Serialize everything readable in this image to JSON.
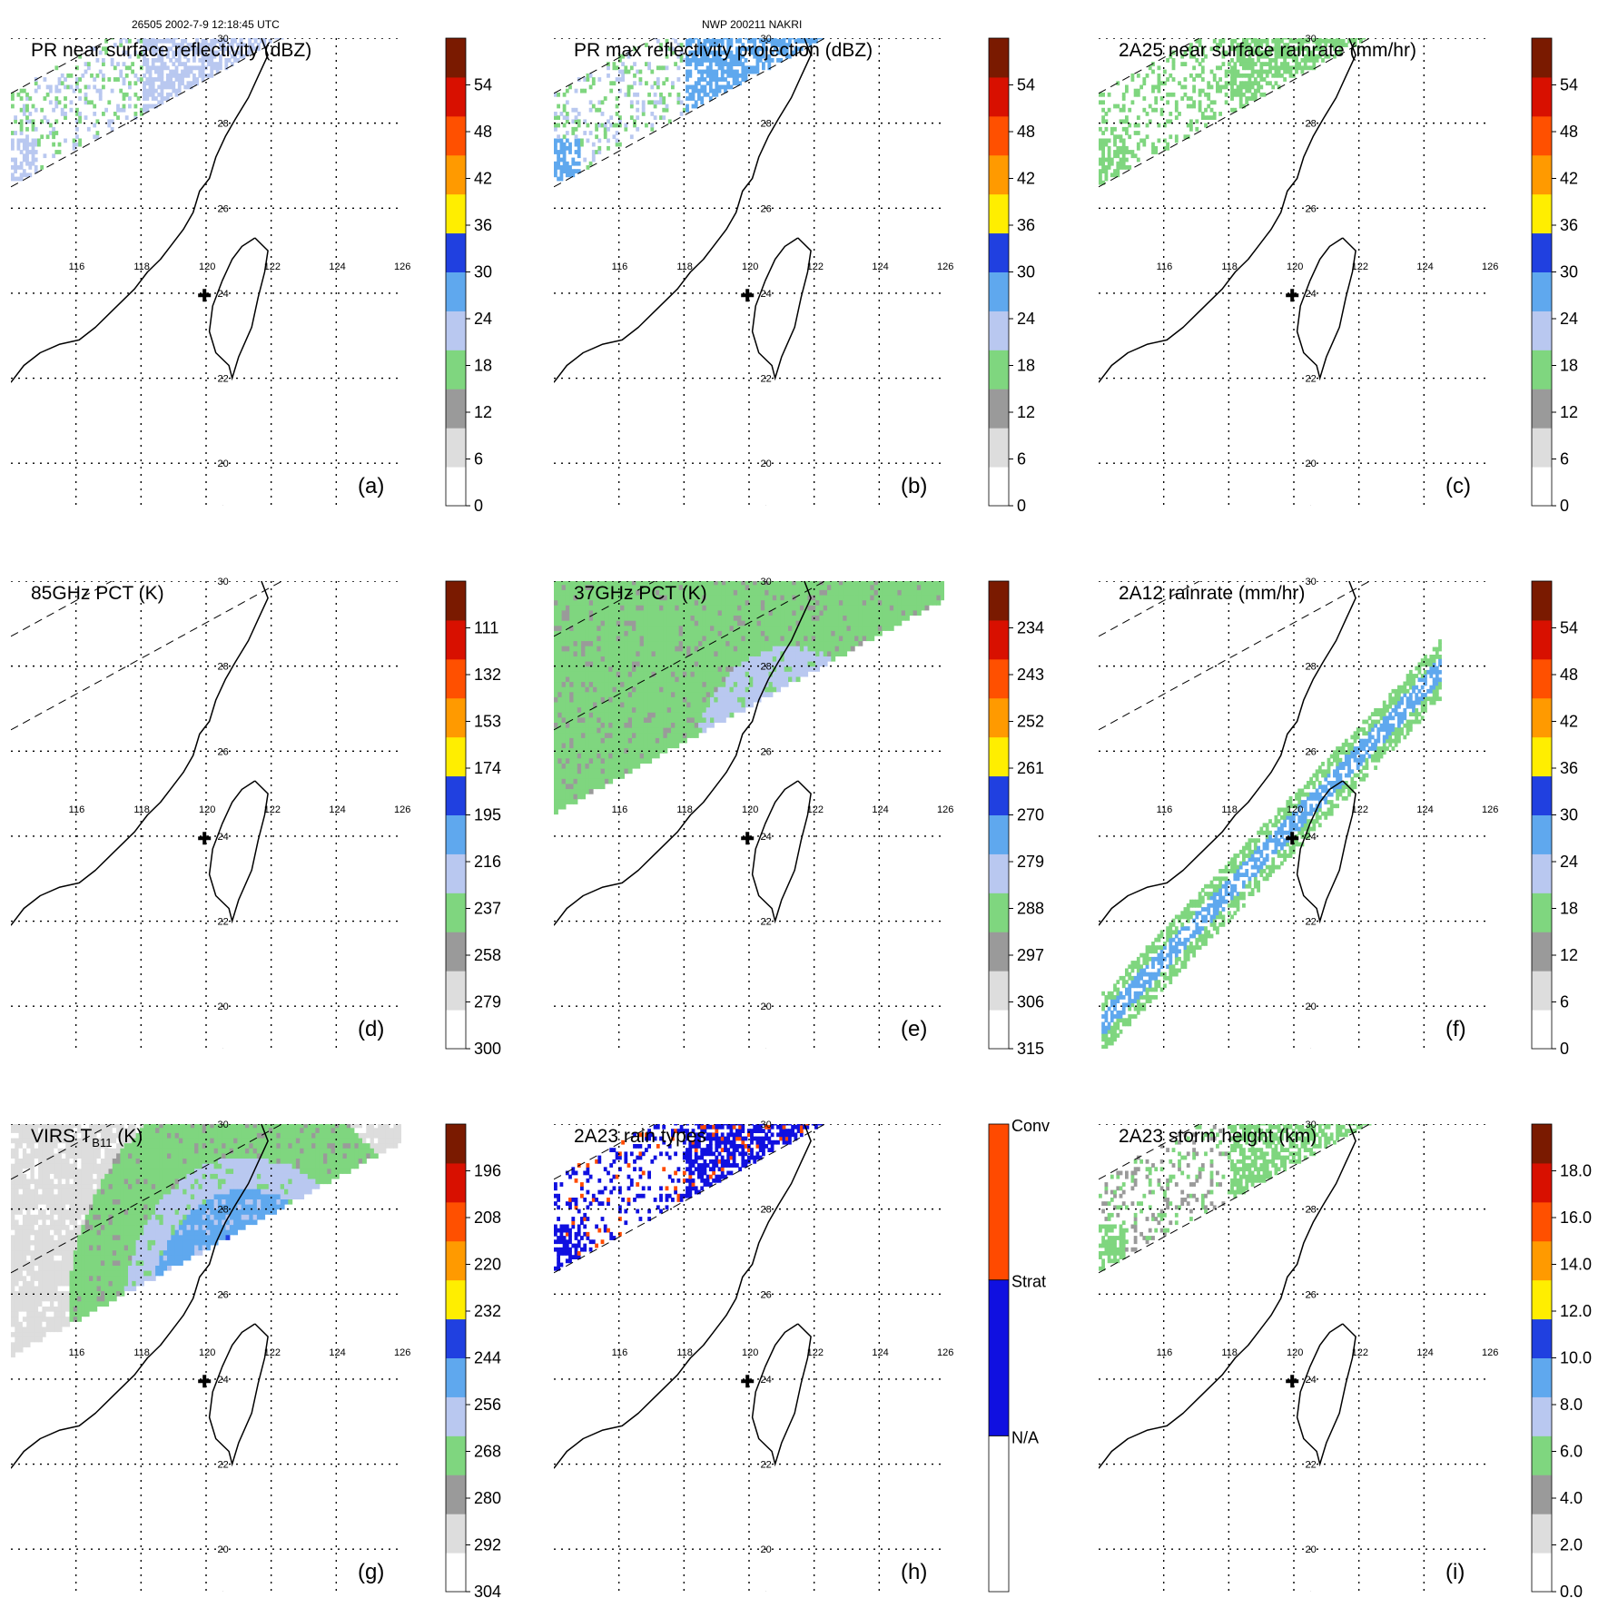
{
  "header": {
    "orbit": "26505 2002-7-9 12:18:45 UTC",
    "storm": "NWP 200211 NAKRI"
  },
  "colors": {
    "rain": [
      "#ffffff",
      "#dddddd",
      "#9a9a9a",
      "#7fd67f",
      "#b9c8f0",
      "#5fa8ee",
      "#2040e0",
      "#ffee00",
      "#ff9a00",
      "#ff5000",
      "#d81000",
      "#7a1a00"
    ],
    "pct": [
      "#ffffff",
      "#dddddd",
      "#9a9a9a",
      "#7fd67f",
      "#b9c8f0",
      "#5fa8ee",
      "#2040e0",
      "#ffee00",
      "#ff9a00",
      "#ff5000",
      "#d81000",
      "#7a1a00"
    ],
    "raintype": [
      "#ffffff",
      "#1010e0",
      "#ff4a00"
    ]
  },
  "chart_data": [
    {
      "id": "a",
      "type": "heatmap",
      "title": "PR near surface reflectivity (dBZ)",
      "panel_label": "(a)",
      "colorbar_ticks": [
        "0",
        "6",
        "12",
        "18",
        "24",
        "30",
        "36",
        "42",
        "48",
        "54"
      ],
      "colorbar_range": [
        0,
        60
      ],
      "x_ticks": [
        "116",
        "118",
        "120",
        "122",
        "124",
        "126"
      ],
      "y_ticks": [
        "20",
        "22",
        "24",
        "26",
        "28",
        "30"
      ],
      "xlim": [
        114,
        126
      ],
      "ylim": [
        19,
        30
      ],
      "field": "pr_swath"
    },
    {
      "id": "b",
      "type": "heatmap",
      "title": "PR max reflectivity projection (dBZ)",
      "panel_label": "(b)",
      "colorbar_ticks": [
        "0",
        "6",
        "12",
        "18",
        "24",
        "30",
        "36",
        "42",
        "48",
        "54"
      ],
      "colorbar_range": [
        0,
        60
      ],
      "x_ticks": [
        "116",
        "118",
        "120",
        "122",
        "124",
        "126"
      ],
      "y_ticks": [
        "20",
        "22",
        "24",
        "26",
        "28",
        "30"
      ],
      "xlim": [
        114,
        126
      ],
      "ylim": [
        19,
        30
      ],
      "field": "pr_swath_max"
    },
    {
      "id": "c",
      "type": "heatmap",
      "title": "2A25 near surface rainrate (mm/hr)",
      "panel_label": "(c)",
      "colorbar_ticks": [
        "0",
        "6",
        "12",
        "18",
        "24",
        "30",
        "36",
        "42",
        "48",
        "54"
      ],
      "colorbar_range": [
        0,
        60
      ],
      "x_ticks": [
        "116",
        "118",
        "120",
        "122",
        "124",
        "126"
      ],
      "y_ticks": [
        "20",
        "22",
        "24",
        "26",
        "28",
        "30"
      ],
      "xlim": [
        114,
        126
      ],
      "ylim": [
        19,
        30
      ],
      "field": "pr_rain"
    },
    {
      "id": "d",
      "type": "heatmap",
      "title": "85GHz PCT (K)",
      "panel_label": "(d)",
      "colorbar_ticks": [
        "300",
        "279",
        "258",
        "237",
        "216",
        "195",
        "174",
        "153",
        "132",
        "111"
      ],
      "colorbar_range": [
        300,
        90
      ],
      "x_ticks": [
        "116",
        "118",
        "120",
        "122",
        "124",
        "126"
      ],
      "y_ticks": [
        "20",
        "22",
        "24",
        "26",
        "28",
        "30"
      ],
      "xlim": [
        114,
        126
      ],
      "ylim": [
        19,
        30
      ],
      "field": "pct85"
    },
    {
      "id": "e",
      "type": "heatmap",
      "title": "37GHz PCT (K)",
      "panel_label": "(e)",
      "colorbar_ticks": [
        "315",
        "306",
        "297",
        "288",
        "279",
        "270",
        "261",
        "252",
        "243",
        "234"
      ],
      "colorbar_range": [
        315,
        225
      ],
      "x_ticks": [
        "116",
        "118",
        "120",
        "122",
        "124",
        "126"
      ],
      "y_ticks": [
        "20",
        "22",
        "24",
        "26",
        "28",
        "30"
      ],
      "xlim": [
        114,
        126
      ],
      "ylim": [
        19,
        30
      ],
      "field": "pct37"
    },
    {
      "id": "f",
      "type": "heatmap",
      "title": "2A12 rainrate (mm/hr)",
      "panel_label": "(f)",
      "colorbar_ticks": [
        "0",
        "6",
        "12",
        "18",
        "24",
        "30",
        "36",
        "42",
        "48",
        "54"
      ],
      "colorbar_range": [
        0,
        60
      ],
      "x_ticks": [
        "116",
        "118",
        "120",
        "122",
        "124",
        "126"
      ],
      "y_ticks": [
        "20",
        "22",
        "24",
        "26",
        "28",
        "30"
      ],
      "xlim": [
        114,
        126
      ],
      "ylim": [
        19,
        30
      ],
      "field": "tmi_rain"
    },
    {
      "id": "g",
      "type": "heatmap",
      "title": "VIRS T",
      "title_sub": "B11",
      "title_tail": " (K)",
      "panel_label": "(g)",
      "colorbar_ticks": [
        "304",
        "292",
        "280",
        "268",
        "256",
        "244",
        "232",
        "220",
        "208",
        "196"
      ],
      "colorbar_range": [
        304,
        184
      ],
      "x_ticks": [
        "116",
        "118",
        "120",
        "122",
        "124",
        "126"
      ],
      "y_ticks": [
        "20",
        "22",
        "24",
        "26",
        "28",
        "30"
      ],
      "xlim": [
        114,
        126
      ],
      "ylim": [
        19,
        30
      ],
      "field": "virs"
    },
    {
      "id": "h",
      "type": "heatmap",
      "title": "2A23 rain types",
      "panel_label": "(h)",
      "categories": [
        "N/A",
        "Strat",
        "Conv"
      ],
      "x_ticks": [
        "116",
        "118",
        "120",
        "122",
        "124",
        "126"
      ],
      "y_ticks": [
        "20",
        "22",
        "24",
        "26",
        "28",
        "30"
      ],
      "xlim": [
        114,
        126
      ],
      "ylim": [
        19,
        30
      ],
      "field": "raintype"
    },
    {
      "id": "i",
      "type": "heatmap",
      "title": "2A23 storm height (km)",
      "panel_label": "(i)",
      "colorbar_ticks": [
        "0.0",
        "2.0",
        "4.0",
        "6.0",
        "8.0",
        "10.0",
        "12.0",
        "14.0",
        "16.0",
        "18.0"
      ],
      "colorbar_range": [
        0,
        20
      ],
      "x_ticks": [
        "116",
        "118",
        "120",
        "122",
        "124",
        "126"
      ],
      "y_ticks": [
        "20",
        "22",
        "24",
        "26",
        "28",
        "30"
      ],
      "xlim": [
        114,
        126
      ],
      "ylim": [
        19,
        30
      ],
      "field": "stormheight"
    }
  ]
}
